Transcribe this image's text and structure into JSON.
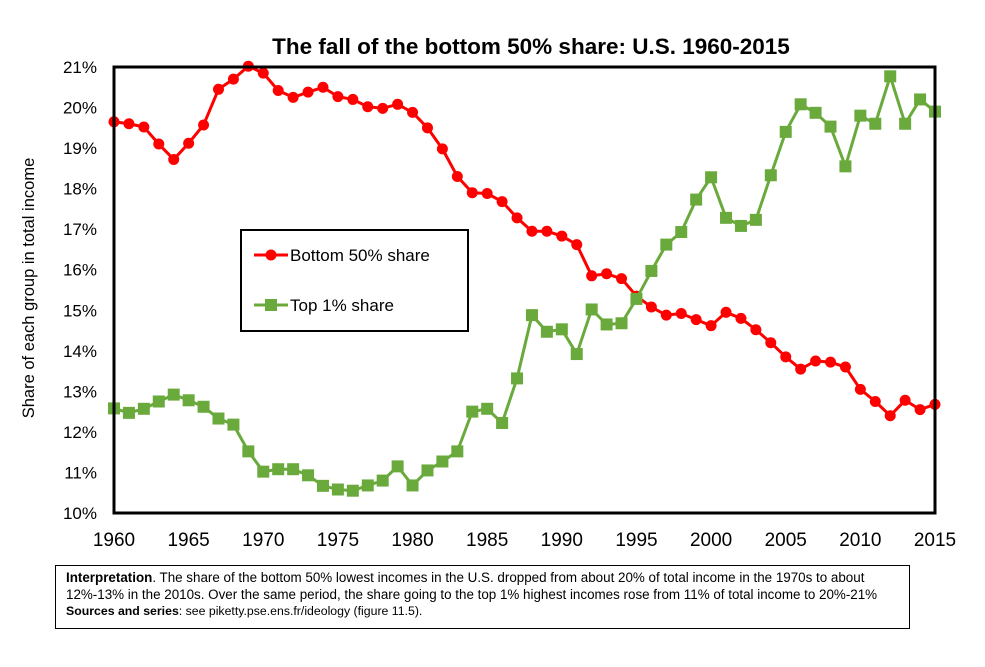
{
  "chart_data": {
    "type": "line",
    "title": "The fall of the bottom 50% share: U.S. 1960-2015",
    "xlabel": "",
    "ylabel": "Share of each group in total income",
    "xlim": [
      1960,
      2015
    ],
    "ylim": [
      10,
      21
    ],
    "xticks": [
      1960,
      1965,
      1970,
      1975,
      1980,
      1985,
      1990,
      1995,
      2000,
      2005,
      2010,
      2015
    ],
    "yticks": [
      10,
      11,
      12,
      13,
      14,
      15,
      16,
      17,
      18,
      19,
      20,
      21
    ],
    "ytick_suffix": "%",
    "legend": "center-left",
    "x": [
      1960,
      1961,
      1962,
      1963,
      1964,
      1965,
      1966,
      1967,
      1968,
      1969,
      1970,
      1971,
      1972,
      1973,
      1974,
      1975,
      1976,
      1977,
      1978,
      1979,
      1980,
      1981,
      1982,
      1983,
      1984,
      1985,
      1986,
      1987,
      1988,
      1989,
      1990,
      1991,
      1992,
      1993,
      1994,
      1995,
      1996,
      1997,
      1998,
      1999,
      2000,
      2001,
      2002,
      2003,
      2004,
      2005,
      2006,
      2007,
      2008,
      2009,
      2010,
      2011,
      2012,
      2013,
      2014,
      2015
    ],
    "series": [
      {
        "name": "Bottom 50% share",
        "color": "#ff0000",
        "marker": "circle",
        "values": [
          19.65,
          19.6,
          19.52,
          19.1,
          18.72,
          19.12,
          19.57,
          20.45,
          20.7,
          21.02,
          20.85,
          20.42,
          20.25,
          20.38,
          20.5,
          20.27,
          20.2,
          20.02,
          19.98,
          20.08,
          19.88,
          19.5,
          18.98,
          18.3,
          17.9,
          17.88,
          17.68,
          17.28,
          16.95,
          16.95,
          16.83,
          16.62,
          15.85,
          15.9,
          15.78,
          15.35,
          15.08,
          14.88,
          14.92,
          14.77,
          14.62,
          14.95,
          14.8,
          14.52,
          14.2,
          13.85,
          13.55,
          13.75,
          13.72,
          13.6,
          13.05,
          12.75,
          12.4,
          12.78,
          12.55,
          12.68
        ]
      },
      {
        "name": "Top 1% share",
        "color": "#6aaa3c",
        "marker": "square",
        "values": [
          12.58,
          12.47,
          12.57,
          12.75,
          12.92,
          12.78,
          12.62,
          12.33,
          12.18,
          11.52,
          11.02,
          11.08,
          11.08,
          10.93,
          10.67,
          10.58,
          10.55,
          10.68,
          10.8,
          11.15,
          10.68,
          11.05,
          11.27,
          11.52,
          12.5,
          12.57,
          12.22,
          13.32,
          14.88,
          14.47,
          14.53,
          13.92,
          15.02,
          14.65,
          14.68,
          15.28,
          15.97,
          16.62,
          16.93,
          17.73,
          18.28,
          17.28,
          17.08,
          17.23,
          18.33,
          19.4,
          20.08,
          19.87,
          19.53,
          18.55,
          19.8,
          19.6,
          20.77,
          19.6,
          20.2,
          19.9
        ]
      }
    ]
  },
  "note": {
    "interpretation_label": "Interpretation",
    "interpretation_text": ". The share of the bottom 50% lowest incomes in the U.S. dropped from about 20% of total income in the 1970s to about 12%-13% in the 2010s. Over the same period, the share going to the top 1% highest incomes rose from 11% of total income to 20%-21%",
    "sources_label": "Sources and series",
    "sources_text": ": see piketty.pse.ens.fr/ideology (figure 11.5)."
  }
}
